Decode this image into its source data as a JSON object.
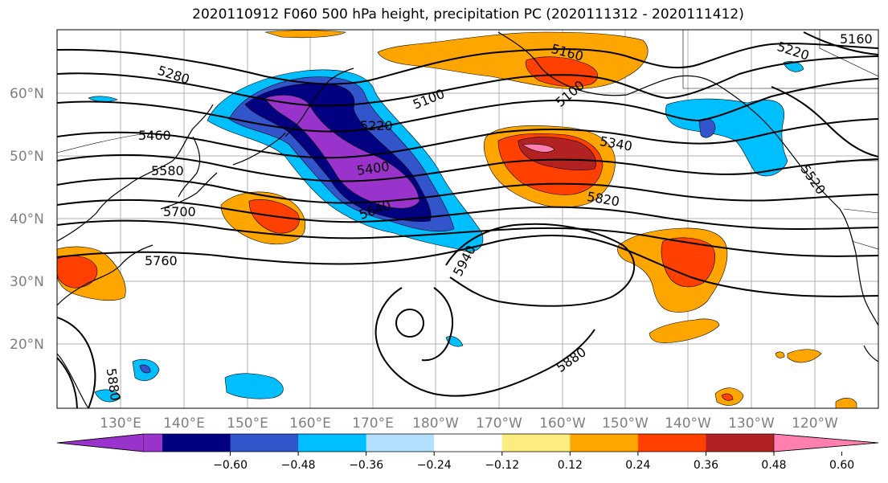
{
  "title": "2020110912 F060 500 hPa height, precipitation PC (2020111312 - 2020111412)",
  "lat_labels": [
    "60°N",
    "50°N",
    "40°N",
    "30°N",
    "20°N"
  ],
  "lon_labels": [
    "130°E",
    "140°E",
    "150°E",
    "160°E",
    "170°E",
    "180°W",
    "170°W",
    "160°W",
    "150°W",
    "140°W",
    "130°W",
    "120°W"
  ],
  "contour_labels": [
    "5280",
    "5100",
    "5160",
    "5100",
    "5220",
    "5220",
    "5460",
    "5580",
    "5400",
    "5340",
    "5700",
    "5640",
    "5820",
    "5520",
    "5760",
    "5940",
    "5880",
    "5880",
    "5160"
  ],
  "colorbar": {
    "colors": [
      "#9933cc",
      "#000080",
      "#3355cc",
      "#00bfff",
      "#b3e0ff",
      "#ffffff",
      "#ffec80",
      "#ffa500",
      "#ff4000",
      "#b22222",
      "#ff80b0"
    ],
    "ticks": [
      "−0.60",
      "−0.48",
      "−0.36",
      "−0.24",
      "−0.12",
      "0.12",
      "0.24",
      "0.36",
      "0.48",
      "0.60"
    ]
  }
}
